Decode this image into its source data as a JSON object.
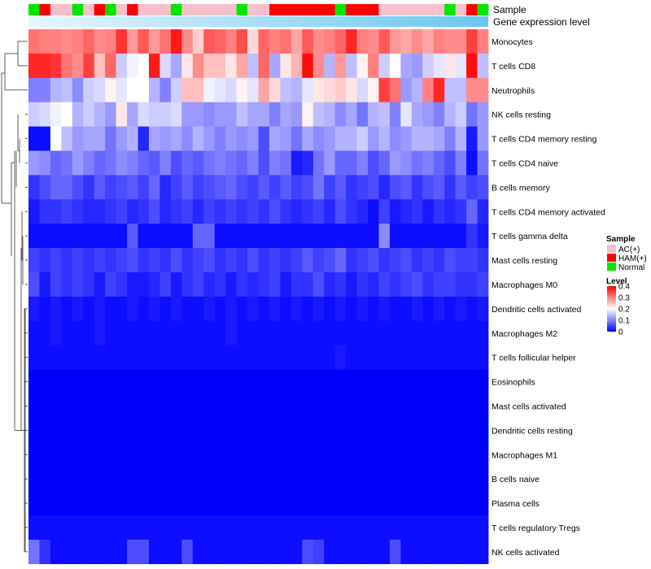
{
  "chart_data": {
    "type": "heatmap",
    "title": "",
    "annotations": {
      "sample_track_label": "Sample",
      "expression_track_label": "Gene expression level"
    },
    "legend": {
      "placement": "right",
      "sample": {
        "title": "Sample",
        "entries": [
          {
            "label": "AC(+)",
            "color": "#f6c0cb"
          },
          {
            "label": "HAM(+)",
            "color": "#ff0000"
          },
          {
            "label": "Normal",
            "color": "#00e600"
          }
        ]
      },
      "level": {
        "title": "Level",
        "ticks": [
          "0.4",
          "0.3",
          "0.2",
          "0.1",
          "0"
        ],
        "min": 0,
        "max": 0.4,
        "colors": {
          "low": "#0000ff",
          "mid": "#ffffff",
          "high": "#ff0000"
        }
      }
    },
    "sample_groups": [
      "N",
      "H",
      "A",
      "A",
      "N",
      "A",
      "H",
      "N",
      "A",
      "H",
      "A",
      "A",
      "A",
      "N",
      "A",
      "A",
      "A",
      "A",
      "A",
      "N",
      "A",
      "A",
      "H",
      "H",
      "H",
      "H",
      "H",
      "H",
      "N",
      "H",
      "H",
      "H",
      "A",
      "A",
      "A",
      "A",
      "A",
      "A",
      "N",
      "A",
      "H",
      "N"
    ],
    "rows": [
      "Monocytes",
      "T cells CD8",
      "Neutrophils",
      "NK cells resting",
      "T cells CD4 memory resting",
      "T cells CD4 naive",
      "B cells memory",
      "T cells CD4 memory activated",
      "T cells gamma delta",
      "Mast cells resting",
      "Macrophages M0",
      "Dendritic cells activated",
      "Macrophages M2",
      "T cells follicular helper",
      "Eosinophils",
      "Mast cells activated",
      "Dendritic cells resting",
      "Macrophages M1",
      "B cells naive",
      "Plasma cells",
      "T cells regulatory  Tregs",
      "NK cells activated"
    ],
    "values": [
      [
        0.31,
        0.3,
        0.3,
        0.29,
        0.3,
        0.32,
        0.29,
        0.3,
        0.36,
        0.28,
        0.33,
        0.28,
        0.31,
        0.38,
        0.29,
        0.24,
        0.33,
        0.32,
        0.3,
        0.34,
        0.23,
        0.32,
        0.3,
        0.31,
        0.27,
        0.33,
        0.29,
        0.3,
        0.32,
        0.37,
        0.3,
        0.29,
        0.33,
        0.28,
        0.27,
        0.29,
        0.27,
        0.3,
        0.29,
        0.29,
        0.35,
        0.3
      ],
      [
        0.37,
        0.37,
        0.36,
        0.31,
        0.29,
        0.35,
        0.25,
        0.32,
        0.16,
        0.19,
        0.2,
        0.38,
        0.17,
        0.13,
        0.22,
        0.29,
        0.25,
        0.25,
        0.22,
        0.27,
        0.15,
        0.32,
        0.13,
        0.22,
        0.26,
        0.39,
        0.29,
        0.14,
        0.28,
        0.15,
        0.21,
        0.3,
        0.16,
        0.2,
        0.13,
        0.12,
        0.16,
        0.18,
        0.22,
        0.18,
        0.39,
        0.15
      ],
      [
        0.1,
        0.1,
        0.14,
        0.15,
        0.11,
        0.16,
        0.17,
        0.21,
        0.18,
        0.2,
        0.2,
        0.14,
        0.1,
        0.16,
        0.25,
        0.25,
        0.19,
        0.18,
        0.17,
        0.21,
        0.18,
        0.27,
        0.23,
        0.15,
        0.14,
        0.18,
        0.22,
        0.23,
        0.24,
        0.22,
        0.17,
        0.21,
        0.35,
        0.31,
        0.12,
        0.14,
        0.3,
        0.37,
        0.15,
        0.15,
        0.29,
        0.29
      ],
      [
        0.16,
        0.17,
        0.19,
        0.2,
        0.14,
        0.16,
        0.14,
        0.12,
        0.22,
        0.13,
        0.17,
        0.16,
        0.16,
        0.17,
        0.12,
        0.12,
        0.11,
        0.12,
        0.12,
        0.15,
        0.13,
        0.13,
        0.1,
        0.13,
        0.12,
        0.21,
        0.15,
        0.14,
        0.11,
        0.13,
        0.09,
        0.14,
        0.15,
        0.1,
        0.18,
        0.13,
        0.12,
        0.1,
        0.14,
        0.16,
        0.09,
        0.12
      ],
      [
        0.01,
        0.01,
        0.2,
        0.15,
        0.12,
        0.13,
        0.13,
        0.09,
        0.12,
        0.14,
        0.03,
        0.13,
        0.12,
        0.13,
        0.11,
        0.14,
        0.12,
        0.1,
        0.12,
        0.11,
        0.12,
        0.06,
        0.13,
        0.12,
        0.09,
        0.13,
        0.11,
        0.12,
        0.14,
        0.14,
        0.16,
        0.12,
        0.14,
        0.11,
        0.12,
        0.14,
        0.14,
        0.13,
        0.1,
        0.14,
        0.02,
        0.12
      ],
      [
        0.12,
        0.11,
        0.08,
        0.09,
        0.12,
        0.1,
        0.08,
        0.09,
        0.11,
        0.1,
        0.08,
        0.07,
        0.1,
        0.06,
        0.08,
        0.07,
        0.09,
        0.1,
        0.09,
        0.08,
        0.1,
        0.06,
        0.1,
        0.09,
        0.02,
        0.03,
        0.09,
        0.12,
        0.08,
        0.08,
        0.1,
        0.06,
        0.08,
        0.12,
        0.11,
        0.09,
        0.1,
        0.08,
        0.06,
        0.1,
        0.01,
        0.09
      ],
      [
        0.04,
        0.06,
        0.08,
        0.08,
        0.06,
        0.04,
        0.07,
        0.05,
        0.06,
        0.07,
        0.05,
        0.08,
        0.03,
        0.05,
        0.07,
        0.05,
        0.06,
        0.07,
        0.08,
        0.06,
        0.05,
        0.07,
        0.05,
        0.07,
        0.05,
        0.06,
        0.09,
        0.05,
        0.07,
        0.04,
        0.05,
        0.06,
        0.03,
        0.06,
        0.07,
        0.04,
        0.06,
        0.07,
        0.04,
        0.07,
        0.05,
        0.06
      ],
      [
        0.02,
        0.04,
        0.04,
        0.05,
        0.04,
        0.03,
        0.03,
        0.04,
        0.05,
        0.03,
        0.04,
        0.06,
        0.03,
        0.04,
        0.05,
        0.03,
        0.05,
        0.04,
        0.05,
        0.04,
        0.05,
        0.04,
        0.06,
        0.04,
        0.03,
        0.04,
        0.05,
        0.03,
        0.06,
        0.04,
        0.03,
        0.01,
        0.05,
        0.02,
        0.03,
        0.04,
        0.02,
        0.04,
        0.03,
        0.04,
        0.08,
        0.03
      ],
      [
        0.01,
        0.01,
        0.01,
        0.01,
        0.01,
        0.01,
        0.01,
        0.01,
        0.01,
        0.07,
        0.01,
        0.01,
        0.01,
        0.01,
        0.01,
        0.08,
        0.08,
        0.01,
        0.01,
        0.01,
        0.01,
        0.01,
        0.01,
        0.01,
        0.01,
        0.01,
        0.01,
        0.01,
        0.01,
        0.01,
        0.01,
        0.01,
        0.11,
        0.01,
        0.01,
        0.01,
        0.01,
        0.01,
        0.01,
        0.01,
        0.04,
        0.02
      ],
      [
        0.05,
        0.04,
        0.05,
        0.04,
        0.05,
        0.04,
        0.05,
        0.04,
        0.05,
        0.06,
        0.04,
        0.05,
        0.04,
        0.06,
        0.04,
        0.05,
        0.06,
        0.04,
        0.05,
        0.04,
        0.06,
        0.04,
        0.05,
        0.04,
        0.05,
        0.07,
        0.05,
        0.06,
        0.08,
        0.04,
        0.05,
        0.06,
        0.04,
        0.05,
        0.06,
        0.04,
        0.05,
        0.04,
        0.06,
        0.05,
        0.05,
        0.04
      ],
      [
        0.06,
        0.02,
        0.05,
        0.04,
        0.05,
        0.04,
        0.02,
        0.05,
        0.04,
        0.02,
        0.02,
        0.03,
        0.05,
        0.02,
        0.04,
        0.05,
        0.03,
        0.04,
        0.02,
        0.04,
        0.03,
        0.04,
        0.05,
        0.02,
        0.04,
        0.04,
        0.06,
        0.03,
        0.04,
        0.02,
        0.04,
        0.03,
        0.05,
        0.04,
        0.05,
        0.06,
        0.04,
        0.05,
        0.05,
        0.04,
        0.04,
        0.05
      ],
      [
        0.02,
        0.01,
        0.02,
        0.01,
        0.02,
        0.01,
        0.02,
        0.01,
        0.01,
        0.02,
        0.01,
        0.02,
        0.01,
        0.02,
        0.01,
        0.01,
        0.02,
        0.01,
        0.02,
        0.01,
        0.02,
        0.01,
        0.02,
        0.01,
        0.02,
        0.01,
        0.02,
        0.01,
        0.02,
        0.01,
        0.02,
        0.01,
        0.02,
        0.01,
        0.01,
        0.02,
        0.01,
        0.02,
        0.01,
        0.02,
        0.01,
        0.02
      ],
      [
        0.01,
        0.01,
        0.02,
        0.01,
        0.01,
        0.01,
        0.02,
        0.01,
        0.01,
        0.01,
        0.01,
        0.01,
        0.01,
        0.01,
        0.01,
        0.01,
        0.01,
        0.01,
        0.02,
        0.01,
        0.01,
        0.01,
        0.01,
        0.01,
        0.01,
        0.01,
        0.01,
        0.01,
        0.01,
        0.01,
        0.01,
        0.01,
        0.01,
        0.01,
        0.01,
        0.01,
        0.01,
        0.01,
        0.01,
        0.01,
        0.01,
        0.01
      ],
      [
        0.01,
        0.01,
        0.01,
        0.01,
        0.01,
        0.01,
        0.01,
        0.01,
        0.01,
        0.01,
        0.01,
        0.01,
        0.01,
        0.01,
        0.01,
        0.01,
        0.01,
        0.01,
        0.01,
        0.01,
        0.01,
        0.01,
        0.01,
        0.01,
        0.01,
        0.01,
        0.01,
        0.01,
        0.02,
        0.01,
        0.01,
        0.01,
        0.01,
        0.01,
        0.01,
        0.01,
        0.01,
        0.01,
        0.01,
        0.01,
        0.01,
        0.01
      ],
      [
        0,
        0,
        0,
        0,
        0,
        0,
        0,
        0,
        0,
        0,
        0,
        0,
        0,
        0,
        0,
        0,
        0,
        0,
        0,
        0,
        0,
        0,
        0,
        0,
        0,
        0,
        0,
        0,
        0,
        0,
        0,
        0,
        0,
        0,
        0,
        0,
        0,
        0,
        0,
        0,
        0,
        0
      ],
      [
        0,
        0,
        0,
        0,
        0,
        0,
        0,
        0,
        0,
        0,
        0,
        0,
        0,
        0,
        0,
        0,
        0,
        0,
        0,
        0,
        0,
        0,
        0,
        0,
        0,
        0,
        0,
        0,
        0,
        0,
        0,
        0,
        0,
        0,
        0,
        0,
        0,
        0,
        0,
        0,
        0,
        0
      ],
      [
        0,
        0,
        0,
        0,
        0,
        0,
        0,
        0,
        0,
        0,
        0,
        0,
        0,
        0,
        0,
        0,
        0,
        0,
        0,
        0,
        0,
        0,
        0,
        0,
        0,
        0,
        0,
        0,
        0,
        0,
        0,
        0,
        0,
        0,
        0,
        0,
        0,
        0,
        0,
        0,
        0,
        0
      ],
      [
        0,
        0,
        0,
        0,
        0,
        0,
        0,
        0,
        0,
        0,
        0,
        0,
        0,
        0,
        0,
        0,
        0,
        0,
        0,
        0,
        0,
        0,
        0,
        0,
        0,
        0,
        0,
        0,
        0,
        0,
        0,
        0,
        0,
        0,
        0,
        0,
        0,
        0,
        0,
        0,
        0,
        0
      ],
      [
        0,
        0,
        0,
        0,
        0,
        0,
        0,
        0,
        0,
        0,
        0,
        0,
        0,
        0,
        0,
        0,
        0,
        0,
        0,
        0,
        0,
        0,
        0,
        0,
        0,
        0,
        0,
        0,
        0,
        0,
        0,
        0,
        0,
        0,
        0,
        0,
        0,
        0,
        0,
        0,
        0,
        0
      ],
      [
        0,
        0,
        0,
        0,
        0,
        0,
        0,
        0,
        0,
        0,
        0,
        0,
        0,
        0,
        0,
        0,
        0,
        0,
        0,
        0,
        0,
        0,
        0,
        0,
        0,
        0,
        0,
        0,
        0,
        0,
        0,
        0,
        0,
        0,
        0,
        0,
        0,
        0,
        0,
        0,
        0,
        0
      ],
      [
        0.01,
        0.01,
        0.01,
        0.01,
        0.01,
        0.01,
        0.01,
        0.01,
        0.01,
        0.01,
        0.01,
        0.01,
        0.01,
        0.01,
        0.01,
        0.01,
        0.01,
        0.01,
        0.01,
        0.01,
        0.01,
        0.01,
        0.01,
        0.01,
        0.01,
        0.01,
        0.01,
        0.01,
        0.01,
        0.01,
        0.01,
        0.01,
        0.01,
        0.01,
        0.01,
        0.01,
        0.01,
        0.01,
        0.01,
        0.01,
        0.01,
        0.01
      ],
      [
        0.09,
        0.04,
        0.01,
        0.01,
        0.01,
        0.01,
        0.01,
        0.01,
        0.01,
        0.06,
        0.06,
        0.01,
        0.01,
        0.01,
        0.06,
        0.01,
        0.01,
        0.01,
        0.01,
        0.01,
        0.01,
        0.01,
        0.01,
        0.01,
        0.01,
        0.06,
        0.05,
        0.01,
        0.01,
        0.01,
        0.01,
        0.01,
        0.01,
        0.06,
        0.01,
        0.01,
        0.01,
        0.01,
        0.01,
        0.01,
        0.01,
        0.01
      ]
    ]
  }
}
